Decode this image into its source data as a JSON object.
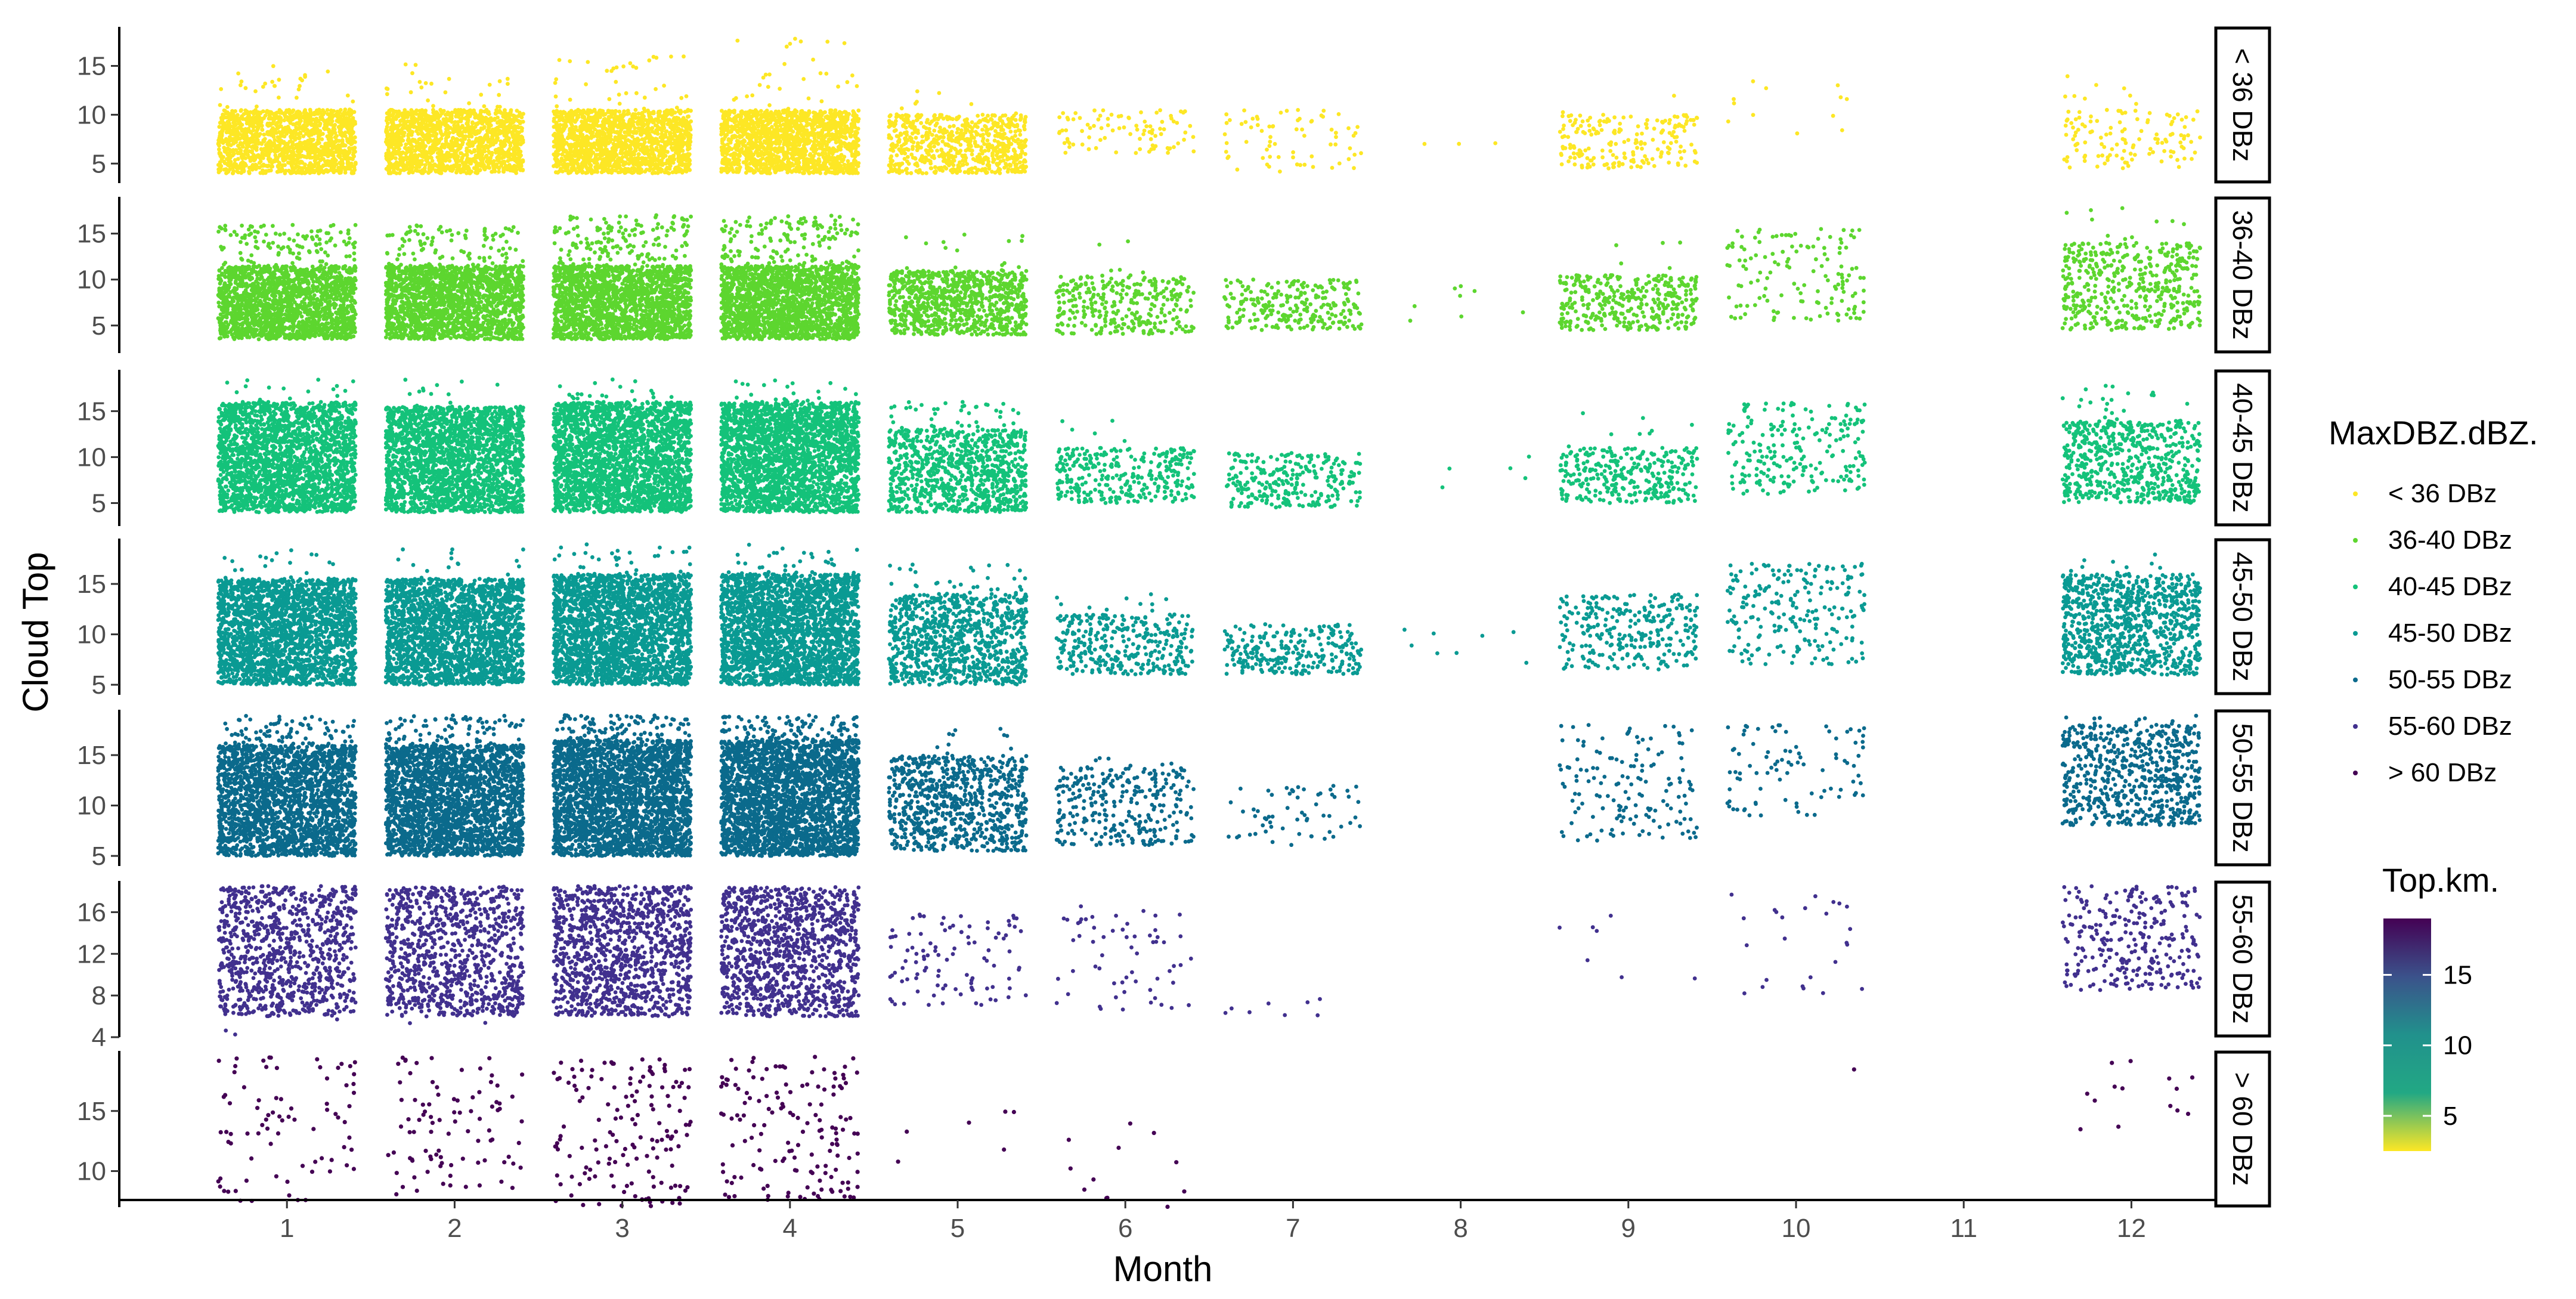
{
  "chart_data": {
    "type": "scatter",
    "xlabel": "Month",
    "ylabel": "Cloud Top",
    "x_ticks": [
      "1",
      "2",
      "3",
      "4",
      "5",
      "6",
      "7",
      "8",
      "9",
      "10",
      "11",
      "12"
    ],
    "xlim": [
      0,
      12.5
    ],
    "legend_dbz": {
      "title": "MaxDBZ.dBZ.",
      "items": [
        {
          "label": "< 36 DBz",
          "color": "#FDE725"
        },
        {
          "label": "36-40 DBz",
          "color": "#5DD62F"
        },
        {
          "label": "40-45 DBz",
          "color": "#14C27A"
        },
        {
          "label": "45-50 DBz",
          "color": "#0A9A93"
        },
        {
          "label": "50-55 DBz",
          "color": "#0B6A8C"
        },
        {
          "label": "55-60 DBz",
          "color": "#41308E"
        },
        {
          "label": "> 60 DBz",
          "color": "#440154"
        }
      ]
    },
    "legend_top": {
      "title": "Top.km.",
      "ticks": [
        "15",
        "10",
        "5"
      ],
      "range": [
        2.5,
        19
      ],
      "tick_values": [
        15,
        10,
        5
      ],
      "colors": [
        "#FDE725",
        "#22A884",
        "#21918C",
        "#3B528B",
        "#440154"
      ]
    },
    "panels": [
      {
        "label": "< 36 DBz",
        "color": "#FDE725",
        "ylim": [
          3,
          19
        ],
        "yticks": [
          "5",
          "10",
          "15"
        ],
        "ytick_values": [
          5,
          10,
          15
        ],
        "months": [
          {
            "m": 1,
            "n": 1400,
            "lo": 4,
            "hi": 10.5,
            "sn": 30,
            "slo": 10.5,
            "shi": 15.5
          },
          {
            "m": 2,
            "n": 1400,
            "lo": 4,
            "hi": 10.5,
            "sn": 25,
            "slo": 10.5,
            "shi": 15.5
          },
          {
            "m": 3,
            "n": 1500,
            "lo": 4,
            "hi": 10.5,
            "sn": 35,
            "slo": 10.5,
            "shi": 16
          },
          {
            "m": 4,
            "n": 1500,
            "lo": 4,
            "hi": 10.5,
            "sn": 30,
            "slo": 10.5,
            "shi": 18
          },
          {
            "m": 5,
            "n": 700,
            "lo": 4,
            "hi": 10,
            "sn": 8,
            "slo": 10,
            "shi": 14
          },
          {
            "m": 6,
            "n": 90,
            "lo": 6,
            "hi": 10.5,
            "sn": 0,
            "slo": 0,
            "shi": 0
          },
          {
            "m": 7,
            "n": 70,
            "lo": 4,
            "hi": 10.5,
            "sn": 0,
            "slo": 0,
            "shi": 0
          },
          {
            "m": 8,
            "n": 3,
            "lo": 6,
            "hi": 8,
            "sn": 0,
            "slo": 0,
            "shi": 0
          },
          {
            "m": 9,
            "n": 200,
            "lo": 4.5,
            "hi": 10,
            "sn": 2,
            "slo": 10,
            "shi": 12
          },
          {
            "m": 10,
            "n": 12,
            "lo": 7,
            "hi": 13.5,
            "sn": 0,
            "slo": 0,
            "shi": 0
          },
          {
            "m": 12,
            "n": 120,
            "lo": 4.5,
            "hi": 10.5,
            "sn": 8,
            "slo": 10.5,
            "shi": 14
          }
        ]
      },
      {
        "label": "36-40 DBz",
        "color": "#5DD62F",
        "ylim": [
          2,
          19
        ],
        "yticks": [
          "5",
          "10",
          "15"
        ],
        "ytick_values": [
          5,
          10,
          15
        ],
        "months": [
          {
            "m": 1,
            "n": 1800,
            "lo": 3.5,
            "hi": 11.5,
            "sn": 120,
            "slo": 11.5,
            "shi": 16
          },
          {
            "m": 2,
            "n": 1800,
            "lo": 3.5,
            "hi": 11.5,
            "sn": 100,
            "slo": 11.5,
            "shi": 16
          },
          {
            "m": 3,
            "n": 1900,
            "lo": 3.5,
            "hi": 11.5,
            "sn": 160,
            "slo": 11.5,
            "shi": 17
          },
          {
            "m": 4,
            "n": 1900,
            "lo": 3.5,
            "hi": 11.5,
            "sn": 150,
            "slo": 11.5,
            "shi": 17
          },
          {
            "m": 5,
            "n": 900,
            "lo": 4,
            "hi": 11,
            "sn": 15,
            "slo": 11,
            "shi": 15
          },
          {
            "m": 6,
            "n": 300,
            "lo": 4,
            "hi": 10.5,
            "sn": 5,
            "slo": 10.5,
            "shi": 15
          },
          {
            "m": 7,
            "n": 250,
            "lo": 4.5,
            "hi": 10,
            "sn": 0,
            "slo": 0,
            "shi": 0
          },
          {
            "m": 8,
            "n": 8,
            "lo": 5.5,
            "hi": 10.5,
            "sn": 0,
            "slo": 0,
            "shi": 0
          },
          {
            "m": 9,
            "n": 350,
            "lo": 4.5,
            "hi": 10.5,
            "sn": 5,
            "slo": 10.5,
            "shi": 15
          },
          {
            "m": 10,
            "n": 140,
            "lo": 5.5,
            "hi": 15.5,
            "sn": 0,
            "slo": 0,
            "shi": 0
          },
          {
            "m": 12,
            "n": 450,
            "lo": 4.5,
            "hi": 14,
            "sn": 10,
            "slo": 14,
            "shi": 18
          }
        ]
      },
      {
        "label": "40-45 DBz",
        "color": "#14C27A",
        "ylim": [
          2.5,
          19.5
        ],
        "yticks": [
          "5",
          "10",
          "15"
        ],
        "ytick_values": [
          5,
          10,
          15
        ],
        "months": [
          {
            "m": 1,
            "n": 2200,
            "lo": 4,
            "hi": 16,
            "sn": 15,
            "slo": 16,
            "shi": 18.5
          },
          {
            "m": 2,
            "n": 2200,
            "lo": 4,
            "hi": 15.5,
            "sn": 12,
            "slo": 15.5,
            "shi": 18.5
          },
          {
            "m": 3,
            "n": 2400,
            "lo": 4,
            "hi": 16,
            "sn": 20,
            "slo": 16,
            "shi": 18.5
          },
          {
            "m": 4,
            "n": 2400,
            "lo": 4,
            "hi": 16,
            "sn": 20,
            "slo": 16,
            "shi": 18.5
          },
          {
            "m": 5,
            "n": 900,
            "lo": 4,
            "hi": 13,
            "sn": 40,
            "slo": 13,
            "shi": 16
          },
          {
            "m": 6,
            "n": 320,
            "lo": 5,
            "hi": 11,
            "sn": 5,
            "slo": 11,
            "shi": 14
          },
          {
            "m": 7,
            "n": 260,
            "lo": 4.5,
            "hi": 10.5,
            "sn": 0,
            "slo": 0,
            "shi": 0
          },
          {
            "m": 8,
            "n": 5,
            "lo": 4,
            "hi": 10.5,
            "sn": 0,
            "slo": 0,
            "shi": 0
          },
          {
            "m": 9,
            "n": 300,
            "lo": 5,
            "hi": 11,
            "sn": 8,
            "slo": 11,
            "shi": 15
          },
          {
            "m": 10,
            "n": 220,
            "lo": 6,
            "hi": 16,
            "sn": 0,
            "slo": 0,
            "shi": 0
          },
          {
            "m": 12,
            "n": 600,
            "lo": 5,
            "hi": 14,
            "sn": 20,
            "slo": 14,
            "shi": 18
          }
        ]
      },
      {
        "label": "45-50 DBz",
        "color": "#0A9A93",
        "ylim": [
          4,
          19.5
        ],
        "yticks": [
          "5",
          "10",
          "15"
        ],
        "ytick_values": [
          5,
          10,
          15
        ],
        "months": [
          {
            "m": 1,
            "n": 2200,
            "lo": 5,
            "hi": 15.5,
            "sn": 20,
            "slo": 15.5,
            "shi": 18.5
          },
          {
            "m": 2,
            "n": 2200,
            "lo": 5,
            "hi": 15.5,
            "sn": 15,
            "slo": 15.5,
            "shi": 18.5
          },
          {
            "m": 3,
            "n": 2400,
            "lo": 5,
            "hi": 16,
            "sn": 30,
            "slo": 16,
            "shi": 19
          },
          {
            "m": 4,
            "n": 2400,
            "lo": 5,
            "hi": 16,
            "sn": 30,
            "slo": 16,
            "shi": 19
          },
          {
            "m": 5,
            "n": 900,
            "lo": 5,
            "hi": 14,
            "sn": 30,
            "slo": 14,
            "shi": 17
          },
          {
            "m": 6,
            "n": 330,
            "lo": 6,
            "hi": 12,
            "sn": 10,
            "slo": 12,
            "shi": 14
          },
          {
            "m": 7,
            "n": 260,
            "lo": 6,
            "hi": 11,
            "sn": 0,
            "slo": 0,
            "shi": 0
          },
          {
            "m": 8,
            "n": 8,
            "lo": 6,
            "hi": 11,
            "sn": 0,
            "slo": 0,
            "shi": 0
          },
          {
            "m": 9,
            "n": 280,
            "lo": 6.5,
            "hi": 14,
            "sn": 0,
            "slo": 0,
            "shi": 0
          },
          {
            "m": 10,
            "n": 220,
            "lo": 7,
            "hi": 17,
            "sn": 0,
            "slo": 0,
            "shi": 0
          },
          {
            "m": 12,
            "n": 900,
            "lo": 6,
            "hi": 16,
            "sn": 10,
            "slo": 16,
            "shi": 18
          }
        ]
      },
      {
        "label": "50-55 DBz",
        "color": "#0B6A8C",
        "ylim": [
          4,
          19.5
        ],
        "yticks": [
          "5",
          "10",
          "15"
        ],
        "ytick_values": [
          5,
          10,
          15
        ],
        "months": [
          {
            "m": 1,
            "n": 2200,
            "lo": 5,
            "hi": 16,
            "sn": 80,
            "slo": 16,
            "shi": 19
          },
          {
            "m": 2,
            "n": 2400,
            "lo": 5,
            "hi": 16,
            "sn": 80,
            "slo": 16,
            "shi": 19
          },
          {
            "m": 3,
            "n": 2600,
            "lo": 5,
            "hi": 16.5,
            "sn": 100,
            "slo": 16.5,
            "shi": 19
          },
          {
            "m": 4,
            "n": 2600,
            "lo": 5,
            "hi": 16.5,
            "sn": 100,
            "slo": 16.5,
            "shi": 19
          },
          {
            "m": 5,
            "n": 800,
            "lo": 5.5,
            "hi": 15,
            "sn": 10,
            "slo": 15,
            "shi": 18
          },
          {
            "m": 6,
            "n": 300,
            "lo": 6,
            "hi": 14,
            "sn": 5,
            "slo": 14,
            "shi": 15
          },
          {
            "m": 7,
            "n": 60,
            "lo": 6,
            "hi": 12,
            "sn": 0,
            "slo": 0,
            "shi": 0
          },
          {
            "m": 9,
            "n": 150,
            "lo": 6.5,
            "hi": 18,
            "sn": 0,
            "slo": 0,
            "shi": 0
          },
          {
            "m": 10,
            "n": 90,
            "lo": 9,
            "hi": 18,
            "sn": 0,
            "slo": 0,
            "shi": 0
          },
          {
            "m": 12,
            "n": 650,
            "lo": 8,
            "hi": 18,
            "sn": 10,
            "slo": 18,
            "shi": 19
          }
        ]
      },
      {
        "label": "55-60 DBz",
        "color": "#41308E",
        "ylim": [
          4,
          19
        ],
        "yticks": [
          "4",
          "8",
          "12",
          "16"
        ],
        "ytick_values": [
          4,
          8,
          12,
          16
        ],
        "months": [
          {
            "m": 1,
            "n": 900,
            "lo": 6,
            "hi": 18.5,
            "sn": 3,
            "slo": 4,
            "shi": 6
          },
          {
            "m": 2,
            "n": 900,
            "lo": 6,
            "hi": 18.5,
            "sn": 2,
            "slo": 5,
            "shi": 6
          },
          {
            "m": 3,
            "n": 1100,
            "lo": 6,
            "hi": 18.5,
            "sn": 0,
            "slo": 0,
            "shi": 0
          },
          {
            "m": 4,
            "n": 1100,
            "lo": 6,
            "hi": 18.5,
            "sn": 0,
            "slo": 0,
            "shi": 0
          },
          {
            "m": 5,
            "n": 100,
            "lo": 7,
            "hi": 16,
            "sn": 0,
            "slo": 0,
            "shi": 0
          },
          {
            "m": 6,
            "n": 60,
            "lo": 6.5,
            "hi": 17,
            "sn": 0,
            "slo": 0,
            "shi": 0
          },
          {
            "m": 7,
            "n": 8,
            "lo": 6,
            "hi": 8,
            "sn": 0,
            "slo": 0,
            "shi": 0
          },
          {
            "m": 9,
            "n": 7,
            "lo": 8.5,
            "hi": 17,
            "sn": 0,
            "slo": 0,
            "shi": 0
          },
          {
            "m": 10,
            "n": 25,
            "lo": 8,
            "hi": 18,
            "sn": 0,
            "slo": 0,
            "shi": 0
          },
          {
            "m": 12,
            "n": 280,
            "lo": 8.5,
            "hi": 18.5,
            "sn": 0,
            "slo": 0,
            "shi": 0
          }
        ]
      },
      {
        "label": "> 60 DBz",
        "color": "#440154",
        "ylim": [
          7,
          20
        ],
        "yticks": [
          "10",
          "15"
        ],
        "ytick_values": [
          10,
          15
        ],
        "months": [
          {
            "m": 1,
            "n": 80,
            "lo": 7.5,
            "hi": 19.5,
            "sn": 0,
            "slo": 0,
            "shi": 0
          },
          {
            "m": 2,
            "n": 90,
            "lo": 8,
            "hi": 19.5,
            "sn": 0,
            "slo": 0,
            "shi": 0
          },
          {
            "m": 3,
            "n": 150,
            "lo": 7,
            "hi": 19.5,
            "sn": 0,
            "slo": 0,
            "shi": 0
          },
          {
            "m": 4,
            "n": 150,
            "lo": 7.5,
            "hi": 19.5,
            "sn": 0,
            "slo": 0,
            "shi": 0
          },
          {
            "m": 5,
            "n": 6,
            "lo": 10,
            "hi": 15,
            "sn": 0,
            "slo": 0,
            "shi": 0
          },
          {
            "m": 6,
            "n": 12,
            "lo": 7,
            "hi": 15.5,
            "sn": 0,
            "slo": 0,
            "shi": 0
          },
          {
            "m": 10,
            "n": 1,
            "lo": 18,
            "hi": 18.5,
            "sn": 0,
            "slo": 0,
            "shi": 0
          },
          {
            "m": 12,
            "n": 14,
            "lo": 13,
            "hi": 19.5,
            "sn": 0,
            "slo": 0,
            "shi": 0
          }
        ]
      }
    ]
  }
}
